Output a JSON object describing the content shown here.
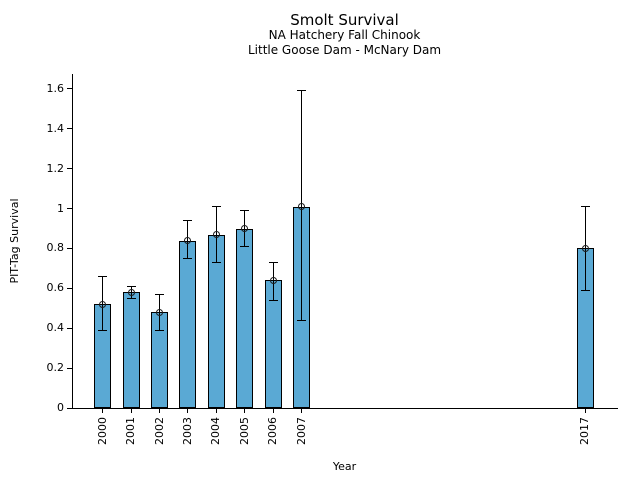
{
  "chart_data": {
    "type": "bar",
    "title": "Smolt Survival",
    "subtitle_lines": [
      "NA Hatchery Fall Chinook",
      "Little Goose Dam - McNary Dam"
    ],
    "xlabel": "Year",
    "ylabel": "PIT-Tag Survival",
    "categories": [
      "2000",
      "2001",
      "2002",
      "2003",
      "2004",
      "2005",
      "2006",
      "2007",
      "2017"
    ],
    "x_values": [
      2000,
      2001,
      2002,
      2003,
      2004,
      2005,
      2006,
      2007,
      2017
    ],
    "values": [
      0.52,
      0.58,
      0.48,
      0.84,
      0.87,
      0.9,
      0.64,
      1.01,
      0.8
    ],
    "error_low": [
      0.39,
      0.55,
      0.39,
      0.75,
      0.73,
      0.81,
      0.54,
      0.44,
      0.59
    ],
    "error_high": [
      0.66,
      0.61,
      0.57,
      0.94,
      1.01,
      0.99,
      0.73,
      1.59,
      1.01
    ],
    "yticks": {
      "values": [
        0,
        0.2,
        0.4,
        0.6,
        0.8,
        1,
        1.2,
        1.4,
        1.6
      ],
      "labels": [
        "0",
        "0.2",
        "0.4",
        "0.6",
        "0.8",
        "1",
        "1.2",
        "1.4",
        "1.6"
      ]
    },
    "xlim": [
      1998.95,
      2018.15
    ],
    "ylim": [
      0,
      1.675
    ],
    "xtick_rotation_deg": 90,
    "grid": false,
    "legend": "none",
    "marker": "open-circle",
    "bar_color": "#5AA9D4",
    "bar_edge_color": "#000000",
    "errorbar_color": "#000000",
    "marker_edge_color": "#1a1a1a",
    "background_color": "#ffffff"
  }
}
